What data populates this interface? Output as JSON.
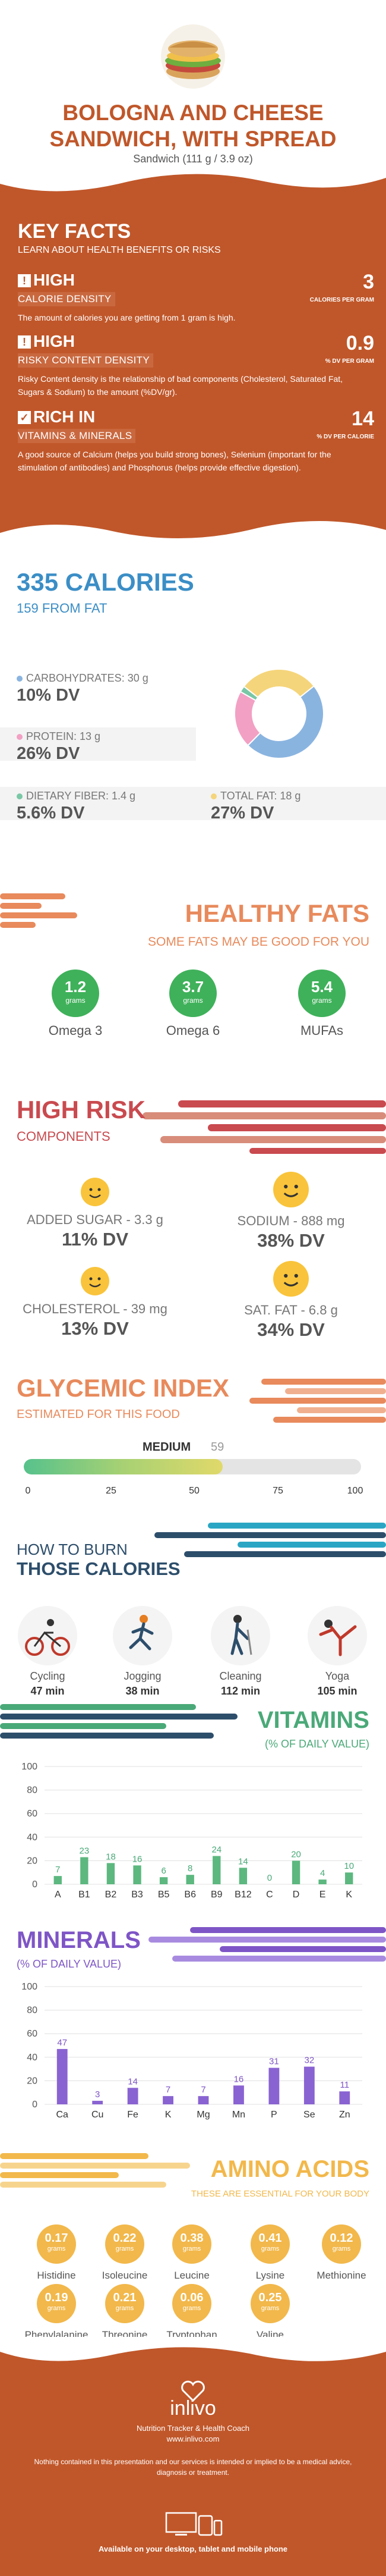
{
  "header": {
    "title_line1": "BOLOGNA AND CHEESE",
    "title_line2": "SANDWICH, WITH SPREAD",
    "subtitle": "Sandwich (111 g / 3.9 oz)"
  },
  "key_facts": {
    "title": "KEY FACTS",
    "subtitle": "LEARN ABOUT HEALTH BENEFITS OR RISKS",
    "items": [
      {
        "level": "HIGH",
        "label": "CALORIE DENSITY",
        "value": "3",
        "unit": "CALORIES PER GRAM",
        "desc": "The amount of calories you are getting from 1 gram is high."
      },
      {
        "level": "HIGH",
        "label": "RISKY CONTENT DENSITY",
        "value": "0.9",
        "unit": "% DV PER GRAM",
        "desc": "Risky Content density is the relationship of bad components (Cholesterol, Saturated Fat, Sugars & Sodium) to the amount (%DV/gr)."
      },
      {
        "level": "RICH  IN",
        "label": "VITAMINS & MINERALS",
        "value": "14",
        "unit": "% DV PER CALORIE",
        "desc": "A good source of Calcium (helps you build strong bones), Selenium (important for the stimulation of antibodies) and Phosphorus (helps provide effective digestion)."
      }
    ]
  },
  "calories": {
    "title": "335 CALORIES",
    "subtitle": "159 FROM FAT",
    "macros": [
      {
        "label": "CARBOHYDRATES: 30 g",
        "dv": "10% DV",
        "color": "#8ab4e0"
      },
      {
        "label": "PROTEIN: 13 g",
        "dv": "26% DV",
        "color": "#f2a0c4"
      },
      {
        "label": "DIETARY FIBER: 1.4 g",
        "dv": "5.6% DV",
        "color": "#79c7a6"
      },
      {
        "label": "TOTAL FAT: 18 g",
        "dv": "27% DV",
        "color": "#f5d57b"
      }
    ],
    "donut": [
      {
        "name": "carbohydrates",
        "value": 30,
        "color": "#8ab4e0"
      },
      {
        "name": "protein",
        "value": 13,
        "color": "#f2a0c4"
      },
      {
        "name": "fiber",
        "value": 1.4,
        "color": "#79c7a6"
      },
      {
        "name": "fat",
        "value": 18,
        "color": "#f5d57b"
      }
    ]
  },
  "healthy_fats": {
    "title": "HEALTHY FATS",
    "subtitle": "SOME FATS MAY BE GOOD FOR YOU",
    "items": [
      {
        "value": "1.2",
        "unit": "grams",
        "name": "Omega 3"
      },
      {
        "value": "3.7",
        "unit": "grams",
        "name": "Omega 6"
      },
      {
        "value": "5.4",
        "unit": "grams",
        "name": "MUFAs"
      }
    ]
  },
  "high_risk": {
    "title": "HIGH RISK",
    "subtitle": "COMPONENTS",
    "items": [
      {
        "label": "ADDED SUGAR - 3.3 g",
        "dv": "11% DV"
      },
      {
        "label": "SODIUM - 888 mg",
        "dv": "38% DV"
      },
      {
        "label": "CHOLESTEROL - 39 mg",
        "dv": "13% DV"
      },
      {
        "label": "SAT. FAT - 6.8 g",
        "dv": "34% DV"
      }
    ]
  },
  "glycemic": {
    "title": "GLYCEMIC INDEX",
    "subtitle": "ESTIMATED FOR THIS FOOD",
    "level": "MEDIUM",
    "value": "59",
    "value_num": 59,
    "ticks": [
      "0",
      "25",
      "50",
      "75",
      "100"
    ]
  },
  "burn": {
    "title_line1": "HOW TO BURN",
    "title_line2": "THOSE CALORIES",
    "activities": [
      {
        "name": "Cycling",
        "minutes": "47 min",
        "icon": "cycling-icon"
      },
      {
        "name": "Jogging",
        "minutes": "38 min",
        "icon": "jogging-icon"
      },
      {
        "name": "Cleaning",
        "minutes": "112 min",
        "icon": "cleaning-icon"
      },
      {
        "name": "Yoga",
        "minutes": "105 min",
        "icon": "yoga-icon"
      }
    ]
  },
  "chart_data": [
    {
      "type": "bar",
      "title": "VITAMINS",
      "subtitle": "(% OF DAILY VALUE)",
      "categories": [
        "A",
        "B1",
        "B2",
        "B3",
        "B5",
        "B6",
        "B9",
        "B12",
        "C",
        "D",
        "E",
        "K"
      ],
      "values": [
        7,
        23,
        18,
        16,
        6,
        8,
        24,
        14,
        0,
        20,
        4,
        10
      ],
      "ylim": [
        0,
        100
      ],
      "yticks": [
        "0",
        "20",
        "40",
        "60",
        "80",
        "100"
      ],
      "grid": true,
      "color": "#5cb87f"
    },
    {
      "type": "bar",
      "title": "MINERALS",
      "subtitle": "(% OF DAILY VALUE)",
      "categories": [
        "Ca",
        "Cu",
        "Fe",
        "K",
        "Mg",
        "Mn",
        "P",
        "Se",
        "Zn"
      ],
      "values": [
        47,
        3,
        14,
        7,
        7,
        16,
        31,
        32,
        11
      ],
      "ylim": [
        0,
        100
      ],
      "yticks": [
        "0",
        "20",
        "40",
        "60",
        "80",
        "100"
      ],
      "grid": true,
      "color": "#8a63d2"
    }
  ],
  "amino": {
    "title": "AMINO ACIDS",
    "subtitle": "THESE ARE ESSENTIAL FOR YOUR BODY",
    "items": [
      {
        "value": "0.17",
        "unit": "grams",
        "name": "Histidine"
      },
      {
        "value": "0.22",
        "unit": "grams",
        "name": "Isoleucine"
      },
      {
        "value": "0.38",
        "unit": "grams",
        "name": "Leucine"
      },
      {
        "value": "0.41",
        "unit": "grams",
        "name": "Lysine"
      },
      {
        "value": "0.12",
        "unit": "grams",
        "name": "Methionine"
      },
      {
        "value": "0.19",
        "unit": "grams",
        "name": "Phenylalanine"
      },
      {
        "value": "0.21",
        "unit": "grams",
        "name": "Threonine"
      },
      {
        "value": "0.06",
        "unit": "grams",
        "name": "Tryptophan"
      },
      {
        "value": "0.25",
        "unit": "grams",
        "name": "Valine"
      }
    ]
  },
  "footer": {
    "logo": "inlivo",
    "tagline": "Nutrition Tracker & Health Coach",
    "url": "www.inlivo.com",
    "disclaimer": "Nothing contained in this presentation and our services is intended or implied to be a medical advice, diagnosis or treatment.",
    "available": "Available on your desktop, tablet and mobile phone"
  }
}
